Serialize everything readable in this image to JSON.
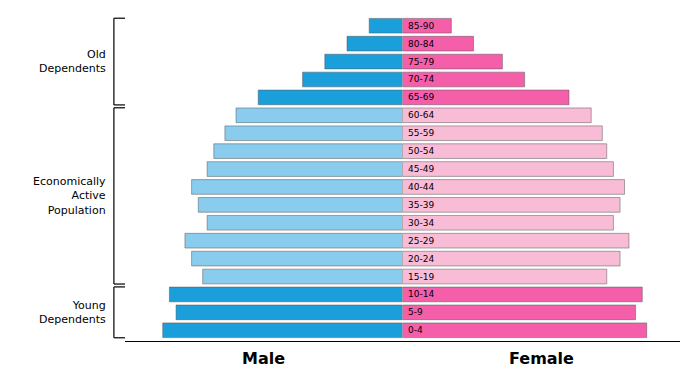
{
  "chart_data": {
    "type": "bar",
    "orientation": "horizontal",
    "categories": [
      "0-4",
      "5-9",
      "10-14",
      "15-19",
      "20-24",
      "25-29",
      "30-34",
      "35-39",
      "40-44",
      "45-49",
      "50-54",
      "55-59",
      "60-64",
      "65-69",
      "70-74",
      "75-79",
      "80-84",
      "85-90"
    ],
    "series": [
      {
        "name": "Male",
        "values": [
          10.8,
          10.2,
          10.5,
          9.0,
          9.5,
          9.8,
          8.8,
          9.2,
          9.5,
          8.8,
          8.5,
          8.0,
          7.5,
          6.5,
          4.5,
          3.5,
          2.5,
          1.5
        ],
        "colors": [
          "#1a9fda",
          "#1a9fda",
          "#1a9fda",
          "#89ccee",
          "#89ccee",
          "#89ccee",
          "#89ccee",
          "#89ccee",
          "#89ccee",
          "#89ccee",
          "#89ccee",
          "#89ccee",
          "#89ccee",
          "#1a9fda",
          "#1a9fda",
          "#1a9fda",
          "#1a9fda",
          "#1a9fda"
        ]
      },
      {
        "name": "Female",
        "values": [
          11.0,
          10.5,
          10.8,
          9.2,
          9.8,
          10.2,
          9.5,
          9.8,
          10.0,
          9.5,
          9.2,
          9.0,
          8.5,
          7.5,
          5.5,
          4.5,
          3.2,
          2.2
        ],
        "colors": [
          "#f55faa",
          "#f55faa",
          "#f55faa",
          "#f9bcd6",
          "#f9bcd6",
          "#f9bcd6",
          "#f9bcd6",
          "#f9bcd6",
          "#f9bcd6",
          "#f9bcd6",
          "#f9bcd6",
          "#f9bcd6",
          "#f9bcd6",
          "#f55faa",
          "#f55faa",
          "#f55faa",
          "#f55faa",
          "#f55faa"
        ]
      }
    ],
    "annotations": [
      {
        "text": "Young\nDependents",
        "from": "0-4",
        "to": "10-14"
      },
      {
        "text": "Economically\nActive\nPopulation",
        "from": "15-19",
        "to": "60-64"
      },
      {
        "text": "Old\nDependents",
        "from": "65-69",
        "to": "85-90"
      }
    ],
    "xlim": [
      0,
      12.5
    ],
    "tick_labels": false,
    "grid": false
  }
}
